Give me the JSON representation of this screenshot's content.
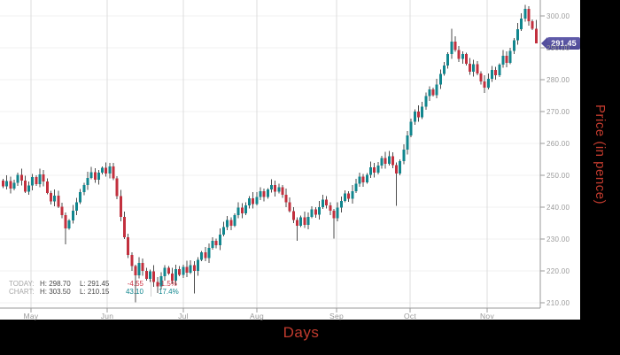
{
  "price_badge": {
    "value": "291.45",
    "color": "#544f9e"
  },
  "legend": {
    "rows": [
      {
        "label": "TODAY:",
        "high": "H: 298.70",
        "low": "L: 291.45",
        "change": "-4.55",
        "pct": "-1.5%",
        "tone": "neg"
      },
      {
        "label": "CHART:",
        "high": "H: 303.50",
        "low": "L: 210.15",
        "change": "43.10",
        "pct": "17.4%",
        "tone": "pos"
      }
    ]
  },
  "chart_data": {
    "type": "candlestick",
    "title": "",
    "xlabel": "Days",
    "ylabel": "Price (in pence)",
    "legend_position": "bottom-left",
    "grid": true,
    "x_tick_labels": [
      "May",
      "Jun",
      "Jul",
      "Aug",
      "Sep",
      "Oct",
      "Nov"
    ],
    "y_ticks": [
      {
        "value": 300,
        "label": "300.00"
      },
      {
        "value": 290,
        "label": "290.00"
      },
      {
        "value": 280,
        "label": "280.00"
      },
      {
        "value": 270,
        "label": "270.00"
      },
      {
        "value": 260,
        "label": "260.00"
      },
      {
        "value": 250,
        "label": "250.00"
      },
      {
        "value": 240,
        "label": "240.00"
      },
      {
        "value": 230,
        "label": "230.00"
      },
      {
        "value": 220,
        "label": "220.00"
      },
      {
        "value": 210,
        "label": "210.00"
      }
    ],
    "ylim": [
      205,
      305
    ],
    "today": {
      "high": 298.7,
      "low": 291.45,
      "change": -4.55,
      "change_pct": -1.5
    },
    "chart_summary": {
      "high": 303.5,
      "low": 210.15,
      "change": 43.1,
      "change_pct": 17.4,
      "last": 291.45
    },
    "first_open": 248.35,
    "closes": [
      246.5,
      248.2,
      245.8,
      247.6,
      250.1,
      248.3,
      244.9,
      246.8,
      249.5,
      247.2,
      250.3,
      248.0,
      244.5,
      241.8,
      243.6,
      240.2,
      237.5,
      233.4,
      235.8,
      238.9,
      241.5,
      244.7,
      246.9,
      249.2,
      251.0,
      248.6,
      250.8,
      252.3,
      250.5,
      252.8,
      249.0,
      243.5,
      237.0,
      230.5,
      225.0,
      221.5,
      218.6,
      222.5,
      220.0,
      217.5,
      219.8,
      216.5,
      215.2,
      218.4,
      221.0,
      219.2,
      217.0,
      220.5,
      218.8,
      221.3,
      219.5,
      221.8,
      220.0,
      223.5,
      225.8,
      224.0,
      227.2,
      229.5,
      228.0,
      231.4,
      233.8,
      236.0,
      234.2,
      237.5,
      239.8,
      238.0,
      240.5,
      242.8,
      241.0,
      243.2,
      245.0,
      243.2,
      245.5,
      247.0,
      244.8,
      246.3,
      243.9,
      241.5,
      238.8,
      236.0,
      234.2,
      236.8,
      234.5,
      237.0,
      239.3,
      237.6,
      240.0,
      242.3,
      240.6,
      238.9,
      236.5,
      239.8,
      242.0,
      244.3,
      242.6,
      245.0,
      247.3,
      249.6,
      247.8,
      250.2,
      252.5,
      250.8,
      253.1,
      255.4,
      253.6,
      256.0,
      253.2,
      250.5,
      254.5,
      258.0,
      262.5,
      266.8,
      270.0,
      268.2,
      271.5,
      274.8,
      277.0,
      275.2,
      278.5,
      281.8,
      284.5,
      288.0,
      292.0,
      289.3,
      286.5,
      288.0,
      285.0,
      282.5,
      284.8,
      281.9,
      279.5,
      277.5,
      280.3,
      283.1,
      281.4,
      284.7,
      287.5,
      285.3,
      289.0,
      292.4,
      295.8,
      299.2,
      302.2,
      298.4,
      296.0,
      291.45
    ],
    "wick_overrides": {
      "17": {
        "low": 228.3
      },
      "29": {
        "high": 253.9
      },
      "36": {
        "low": 210.15
      },
      "42": {
        "low": 213.0
      },
      "52": {
        "low": 212.9
      },
      "80": {
        "low": 229.5
      },
      "90": {
        "low": 230.2
      },
      "107": {
        "low": 240.4
      },
      "122": {
        "high": 296.0
      },
      "131": {
        "low": 275.9
      },
      "142": {
        "high": 303.5
      },
      "145": {
        "high": 298.7,
        "low": 291.45
      }
    },
    "colors": {
      "up": "#11868e",
      "down": "#c2303e",
      "wick": "#4d4d4d"
    }
  }
}
